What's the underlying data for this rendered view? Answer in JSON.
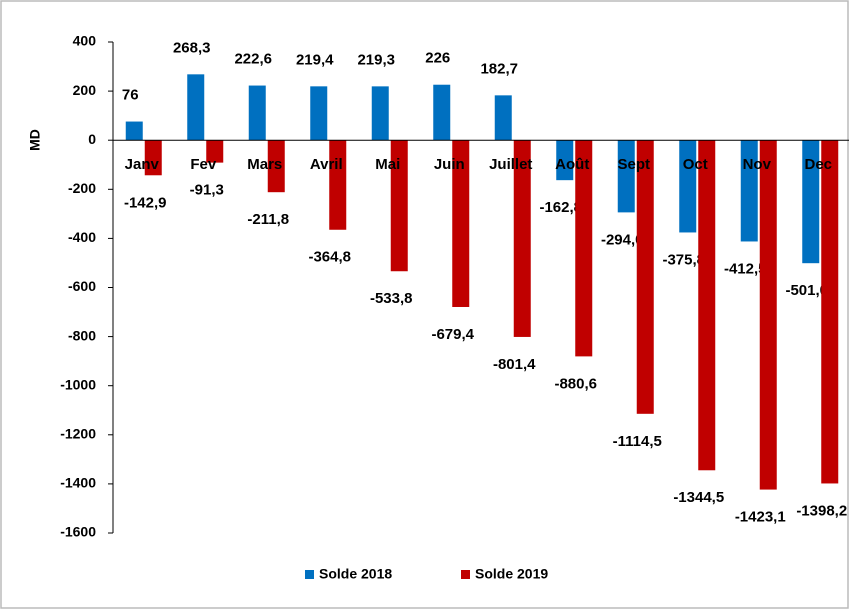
{
  "chart_data": {
    "type": "bar",
    "y_label": "MD",
    "categories": [
      "Janv",
      "Fev",
      "Mars",
      "Avril",
      "Mai",
      "Juin",
      "Juillet",
      "Août",
      "Sept",
      "Oct",
      "Nov",
      "Dec"
    ],
    "series": [
      {
        "name": "Solde 2018",
        "color": "#0070c0",
        "values": [
          76,
          268.3,
          222.6,
          219.4,
          219.3,
          226,
          182.7,
          -162.8,
          -294.0,
          -375.8,
          -412.5,
          -501.0
        ],
        "value_labels": [
          "76",
          "268,3",
          "222,6",
          "219,4",
          "219,3",
          "226",
          "182,7",
          "-162,8",
          "-294,0",
          "-375,8",
          "-412,5",
          "-501,0"
        ]
      },
      {
        "name": "Solde 2019",
        "color": "#c00000",
        "values": [
          -142.9,
          -91.3,
          -211.8,
          -364.8,
          -533.8,
          -679.4,
          -801.4,
          -880.6,
          -1114.5,
          -1344.5,
          -1423.1,
          -1398.2
        ],
        "value_labels": [
          "-142,9",
          "-91,3",
          "-211,8",
          "-364,8",
          "-533,8",
          "-679,4",
          "-801,4",
          "-880,6",
          "-1114,5",
          "-1344,5",
          "-1423,1",
          "-1398,2"
        ]
      }
    ],
    "ylim": [
      -1600,
      400
    ],
    "yticks": [
      400,
      200,
      0,
      -200,
      -400,
      -600,
      -800,
      -1000,
      -1200,
      -1400,
      -1600
    ],
    "legend": "bottom"
  }
}
